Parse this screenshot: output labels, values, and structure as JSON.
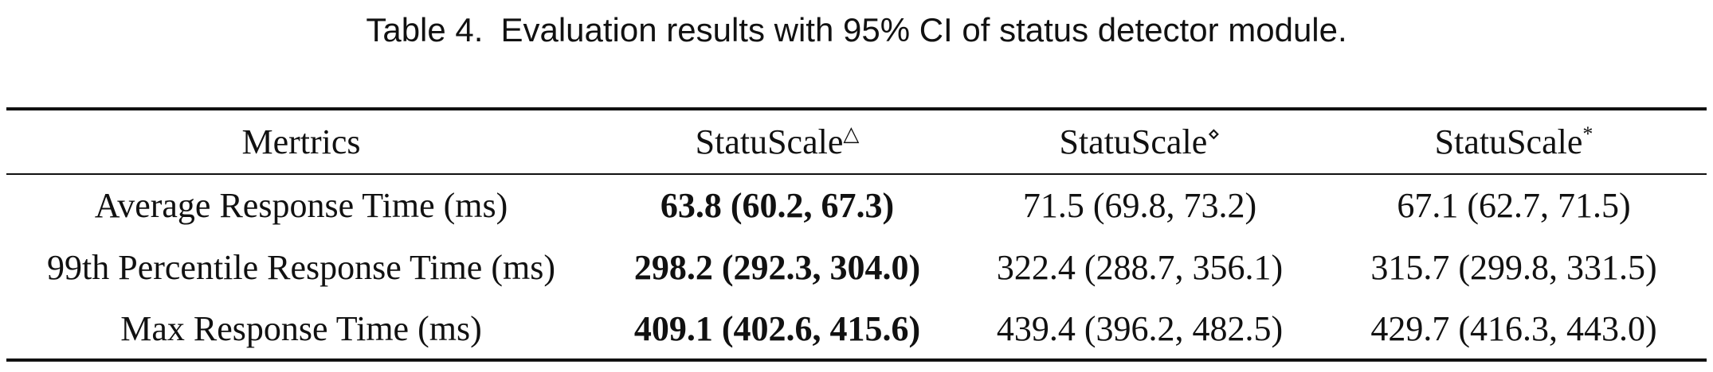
{
  "caption": {
    "label": "Table 4.",
    "text": "Evaluation results with 95% CI of status detector module."
  },
  "table": {
    "headers": [
      {
        "text": "Mertrics",
        "sup": ""
      },
      {
        "text": "StatuScale",
        "sup": "△"
      },
      {
        "text": "StatuScale",
        "sup": "⋄"
      },
      {
        "text": "StatuScale",
        "sup": "*"
      }
    ],
    "rows": [
      {
        "metric": "Average Response Time (ms)",
        "values": [
          "63.8 (60.2, 67.3)",
          "71.5 (69.8, 73.2)",
          "67.1 (62.7, 71.5)"
        ]
      },
      {
        "metric": "99th Percentile Response Time (ms)",
        "values": [
          "298.2 (292.3, 304.0)",
          "322.4 (288.7, 356.1)",
          "315.7 (299.8, 331.5)"
        ]
      },
      {
        "metric": "Max Response Time (ms)",
        "values": [
          "409.1 (402.6, 415.6)",
          "439.4 (396.2, 482.5)",
          "429.7 (416.3, 443.0)"
        ]
      }
    ]
  }
}
